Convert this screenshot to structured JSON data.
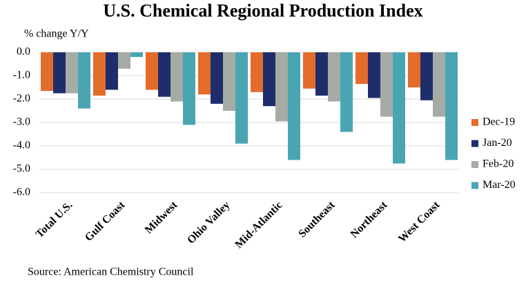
{
  "chart_data": {
    "type": "bar",
    "title": "U.S. Chemical Regional Production Index",
    "y_label": "% change Y/Y",
    "source": "Source: American Chemistry Council",
    "categories": [
      "Total U.S.",
      "Gulf Coast",
      "Midwest",
      "Ohio Valley",
      "Mid-Atlantic",
      "Southeast",
      "Northeast",
      "West Coast"
    ],
    "series": [
      {
        "name": "Dec-19",
        "color": "#e46c2b",
        "values": [
          -1.65,
          -1.85,
          -1.6,
          -1.8,
          -1.7,
          -1.55,
          -1.35,
          -1.5
        ]
      },
      {
        "name": "Jan-20",
        "color": "#1f2e6b",
        "values": [
          -1.75,
          -1.6,
          -1.9,
          -2.2,
          -2.3,
          -1.85,
          -1.95,
          -2.05
        ]
      },
      {
        "name": "Feb-20",
        "color": "#a5aba5",
        "values": [
          -1.75,
          -0.7,
          -2.1,
          -2.5,
          -2.95,
          -2.1,
          -2.75,
          -2.75
        ]
      },
      {
        "name": "Mar-20",
        "color": "#4aa5b3",
        "values": [
          -2.4,
          -0.2,
          -3.1,
          -3.9,
          -4.6,
          -3.4,
          -4.75,
          -4.6
        ]
      }
    ],
    "ylim": [
      -6,
      0
    ],
    "yticks": [
      {
        "value": 0,
        "label": "0.0"
      },
      {
        "value": -1,
        "label": "-1.0"
      },
      {
        "value": -2,
        "label": "-2.0"
      },
      {
        "value": -3,
        "label": "-3.0"
      },
      {
        "value": -4,
        "label": "-4.0"
      },
      {
        "value": -5,
        "label": "-5.0"
      },
      {
        "value": -6,
        "label": "-6.0"
      }
    ],
    "grid": true,
    "legend": "right"
  }
}
